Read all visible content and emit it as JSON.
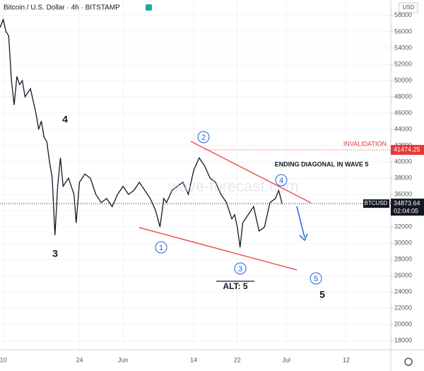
{
  "chart_data": {
    "type": "line",
    "title": "Bitcoin / U.S. Dollar · 4h · BITSTAMP",
    "currency": "USD",
    "watermark": "wave-forecast.com",
    "x": [
      9.4,
      10,
      10.5,
      11,
      11.5,
      12,
      12.5,
      13,
      13.5,
      14,
      15,
      16,
      16.5,
      17,
      17.5,
      18,
      18.5,
      19,
      19.5,
      20,
      20.5,
      21,
      22,
      23,
      23.4,
      24,
      25,
      26,
      27,
      28,
      29,
      30,
      31,
      32,
      33,
      34,
      35,
      36,
      37,
      38,
      38.8,
      39.5,
      40,
      41,
      42,
      43,
      44,
      45,
      46,
      46.5,
      47,
      48,
      49,
      50,
      51,
      52,
      52.5,
      53,
      53.5,
      54,
      55,
      56,
      57,
      58,
      59,
      60,
      60.6,
      61,
      61.2
    ],
    "series": [
      {
        "name": "BTCUSD",
        "color": "#131722",
        "values": [
          56500,
          57500,
          56000,
          55500,
          50000,
          47000,
          50500,
          49500,
          50000,
          48000,
          49000,
          46000,
          44000,
          45000,
          43000,
          42500,
          40000,
          38000,
          31000,
          37000,
          40500,
          37000,
          38000,
          36000,
          32500,
          37500,
          38500,
          38000,
          36000,
          35000,
          35500,
          34500,
          36000,
          37000,
          36000,
          36500,
          37500,
          36500,
          35500,
          34000,
          32000,
          35500,
          35000,
          36500,
          37000,
          37500,
          36000,
          39000,
          40500,
          40000,
          39500,
          38000,
          37500,
          36000,
          35000,
          33000,
          33500,
          32000,
          29500,
          32500,
          33500,
          34500,
          31500,
          32000,
          35000,
          35500,
          36500,
          35500,
          34873.64
        ]
      }
    ],
    "xlim": [
      9.4,
      81.2
    ],
    "ylim": [
      16900,
      59900
    ],
    "xticks": [
      10,
      24,
      {
        "value": 32,
        "label": "Jun"
      },
      14,
      22,
      {
        "value": 62,
        "label": "Jul"
      },
      12
    ],
    "yticks": [
      18000,
      20000,
      22000,
      24000,
      26000,
      28000,
      30000,
      32000,
      34000,
      36000,
      38000,
      40000,
      42000,
      44000,
      46000,
      48000,
      50000,
      52000,
      54000,
      56000,
      58000
    ],
    "current_price": {
      "symbol": "BTCUSD",
      "value": 34873.64,
      "countdown": "02:04:05",
      "color": "#131722"
    },
    "invalidation": {
      "text": "INVALIDATION",
      "value": 41474.25,
      "color": "#e53935"
    },
    "annotations": [
      "4",
      "3",
      "2",
      "4",
      "1",
      "3",
      "5",
      "ALT: 5",
      "5",
      "ENDING DIAGONAL IN WAVE 5"
    ]
  }
}
